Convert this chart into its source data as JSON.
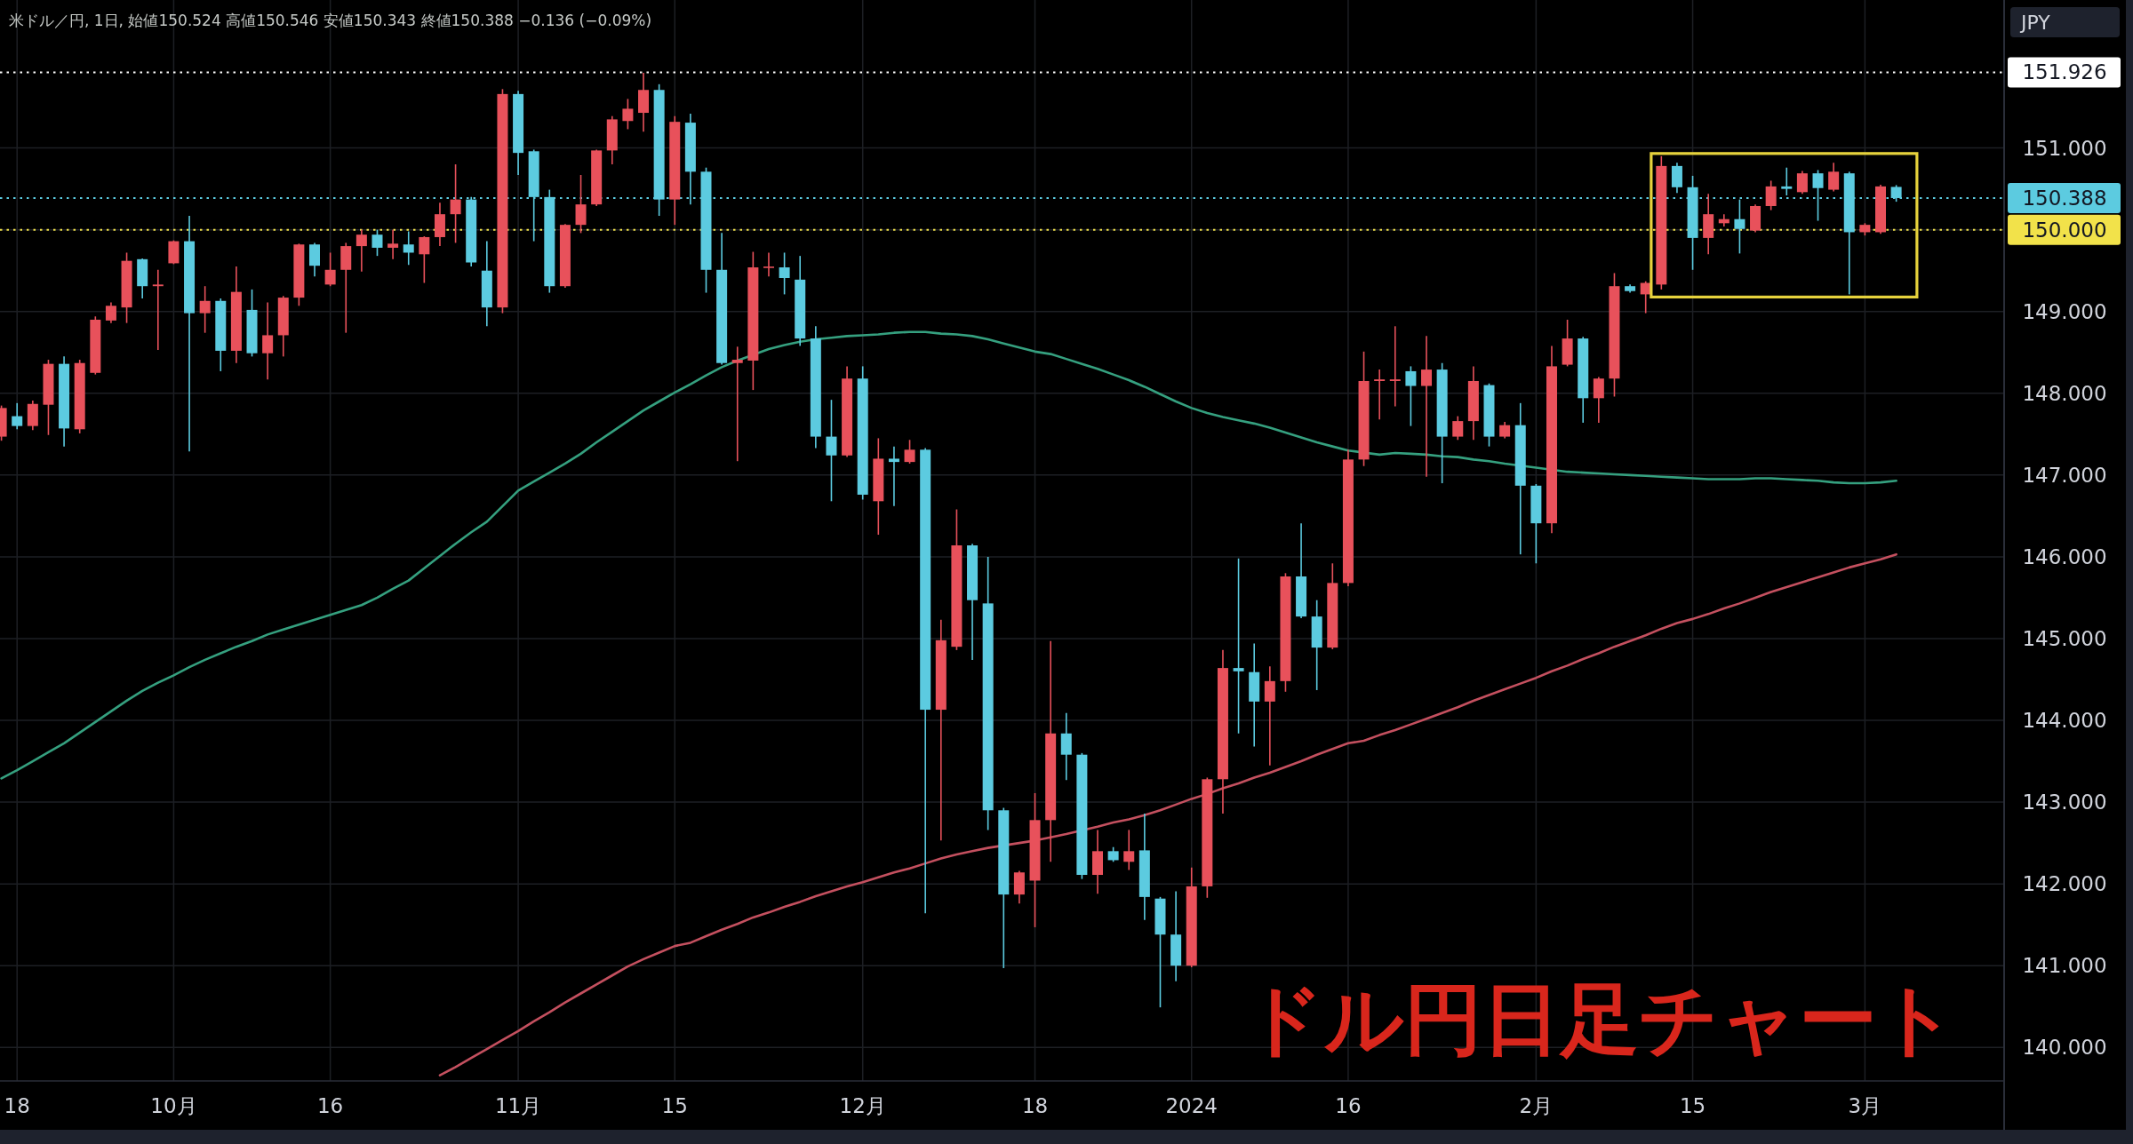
{
  "chart_data": {
    "type": "candlestick",
    "title": "米ドル／円, 1日, 始値150.524 高値150.546 安値150.343 終値150.388 −0.136 (−0.09%)",
    "ylabel": "JPY",
    "annotations": [
      "ドル円日足チャート"
    ],
    "categories": [
      null,
      "18",
      null,
      null,
      null,
      null,
      null,
      null,
      null,
      null,
      null,
      "10月",
      null,
      null,
      null,
      null,
      null,
      null,
      null,
      null,
      null,
      "16",
      null,
      null,
      null,
      null,
      null,
      null,
      null,
      null,
      null,
      null,
      null,
      "11月",
      null,
      null,
      null,
      null,
      null,
      null,
      null,
      null,
      null,
      "15",
      null,
      null,
      null,
      null,
      null,
      null,
      null,
      null,
      null,
      null,
      null,
      "12月",
      null,
      null,
      null,
      null,
      null,
      null,
      null,
      null,
      null,
      null,
      "18",
      null,
      null,
      null,
      null,
      null,
      null,
      null,
      null,
      null,
      "2024",
      null,
      null,
      null,
      null,
      null,
      null,
      null,
      null,
      null,
      "16",
      null,
      null,
      null,
      null,
      null,
      null,
      null,
      null,
      null,
      null,
      null,
      "2月",
      null,
      null,
      null,
      null,
      null,
      null,
      null,
      null,
      null,
      "15",
      null,
      null,
      null,
      null,
      null,
      null,
      null,
      null,
      null,
      null,
      "3月",
      null,
      null
    ],
    "ohlc": [
      [
        147.47,
        147.85,
        147.42,
        147.82
      ],
      [
        147.72,
        147.88,
        147.56,
        147.6
      ],
      [
        147.6,
        147.91,
        147.55,
        147.87
      ],
      [
        147.86,
        148.41,
        147.49,
        148.36
      ],
      [
        148.36,
        148.45,
        147.35,
        147.57
      ],
      [
        147.56,
        148.41,
        147.51,
        148.37
      ],
      [
        148.25,
        148.94,
        148.23,
        148.9
      ],
      [
        148.89,
        149.11,
        148.86,
        149.07
      ],
      [
        149.05,
        149.72,
        148.86,
        149.62
      ],
      [
        149.64,
        149.65,
        149.16,
        149.31
      ],
      [
        149.31,
        149.51,
        148.53,
        149.33
      ],
      [
        149.59,
        149.87,
        149.58,
        149.86
      ],
      [
        149.86,
        150.17,
        147.29,
        148.98
      ],
      [
        148.98,
        149.31,
        148.74,
        149.13
      ],
      [
        149.13,
        149.16,
        148.27,
        148.52
      ],
      [
        148.52,
        149.55,
        148.37,
        149.24
      ],
      [
        149.02,
        149.27,
        148.45,
        148.49
      ],
      [
        148.49,
        149.11,
        148.17,
        148.71
      ],
      [
        148.71,
        149.19,
        148.45,
        149.17
      ],
      [
        149.17,
        149.83,
        149.07,
        149.82
      ],
      [
        149.82,
        149.84,
        149.43,
        149.56
      ],
      [
        149.33,
        149.72,
        149.31,
        149.51
      ],
      [
        149.51,
        149.84,
        148.74,
        149.8
      ],
      [
        149.8,
        150.0,
        149.49,
        149.94
      ],
      [
        149.94,
        150.0,
        149.68,
        149.78
      ],
      [
        149.78,
        150.0,
        149.64,
        149.83
      ],
      [
        149.82,
        149.98,
        149.57,
        149.72
      ],
      [
        149.7,
        149.92,
        149.35,
        149.91
      ],
      [
        149.91,
        150.33,
        149.8,
        150.19
      ],
      [
        150.19,
        150.8,
        149.84,
        150.37
      ],
      [
        150.37,
        150.4,
        149.55,
        149.6
      ],
      [
        149.5,
        149.86,
        148.82,
        149.05
      ],
      [
        149.05,
        151.72,
        148.98,
        151.66
      ],
      [
        151.66,
        151.7,
        150.67,
        150.94
      ],
      [
        150.96,
        150.98,
        149.86,
        150.4
      ],
      [
        150.4,
        150.49,
        149.23,
        149.31
      ],
      [
        149.31,
        150.07,
        149.29,
        150.06
      ],
      [
        150.06,
        150.67,
        149.96,
        150.31
      ],
      [
        150.31,
        150.98,
        150.29,
        150.97
      ],
      [
        150.97,
        151.39,
        150.8,
        151.35
      ],
      [
        151.33,
        151.6,
        151.23,
        151.48
      ],
      [
        151.43,
        151.92,
        151.2,
        151.71
      ],
      [
        151.71,
        151.78,
        150.17,
        150.37
      ],
      [
        150.37,
        151.39,
        150.06,
        151.32
      ],
      [
        151.31,
        151.42,
        150.31,
        150.71
      ],
      [
        150.71,
        150.76,
        149.23,
        149.51
      ],
      [
        149.51,
        149.96,
        148.35,
        148.37
      ],
      [
        148.37,
        148.57,
        147.17,
        148.41
      ],
      [
        148.4,
        149.73,
        148.04,
        149.54
      ],
      [
        149.54,
        149.72,
        149.43,
        149.55
      ],
      [
        149.54,
        149.72,
        149.21,
        149.41
      ],
      [
        149.39,
        149.68,
        148.58,
        148.67
      ],
      [
        148.67,
        148.82,
        147.33,
        147.47
      ],
      [
        147.47,
        147.92,
        146.68,
        147.24
      ],
      [
        147.24,
        148.33,
        147.22,
        148.18
      ],
      [
        148.18,
        148.33,
        146.7,
        146.76
      ],
      [
        146.68,
        147.45,
        146.27,
        147.2
      ],
      [
        147.2,
        147.35,
        146.62,
        147.16
      ],
      [
        147.16,
        147.43,
        147.14,
        147.31
      ],
      [
        147.31,
        147.33,
        141.64,
        144.13
      ],
      [
        144.13,
        145.23,
        142.53,
        144.98
      ],
      [
        144.9,
        146.58,
        144.86,
        146.14
      ],
      [
        146.14,
        146.16,
        144.74,
        145.47
      ],
      [
        145.43,
        146.0,
        142.66,
        142.9
      ],
      [
        142.9,
        142.93,
        140.97,
        141.87
      ],
      [
        141.87,
        142.16,
        141.76,
        142.14
      ],
      [
        142.04,
        143.11,
        141.47,
        142.78
      ],
      [
        142.78,
        144.97,
        142.27,
        143.84
      ],
      [
        143.84,
        144.09,
        143.27,
        143.58
      ],
      [
        143.58,
        143.6,
        142.06,
        142.11
      ],
      [
        142.11,
        142.66,
        141.88,
        142.4
      ],
      [
        142.4,
        142.45,
        142.27,
        142.29
      ],
      [
        142.27,
        142.66,
        142.17,
        142.4
      ],
      [
        142.41,
        142.86,
        141.56,
        141.84
      ],
      [
        141.82,
        141.84,
        140.49,
        141.38
      ],
      [
        141.38,
        141.91,
        140.81,
        141.0
      ],
      [
        141.0,
        142.2,
        140.98,
        141.97
      ],
      [
        141.97,
        143.3,
        141.83,
        143.28
      ],
      [
        143.28,
        144.86,
        142.86,
        144.64
      ],
      [
        144.64,
        145.98,
        143.84,
        144.6
      ],
      [
        144.59,
        144.94,
        143.68,
        144.23
      ],
      [
        144.23,
        144.66,
        143.45,
        144.48
      ],
      [
        144.48,
        145.8,
        144.35,
        145.76
      ],
      [
        145.76,
        146.41,
        145.25,
        145.27
      ],
      [
        145.27,
        145.47,
        144.37,
        144.89
      ],
      [
        144.89,
        145.92,
        144.87,
        145.68
      ],
      [
        145.68,
        147.31,
        145.64,
        147.19
      ],
      [
        147.19,
        148.51,
        147.11,
        148.15
      ],
      [
        148.15,
        148.29,
        147.68,
        148.17
      ],
      [
        148.15,
        148.82,
        147.84,
        148.17
      ],
      [
        148.27,
        148.33,
        147.6,
        148.09
      ],
      [
        148.09,
        148.7,
        146.98,
        148.29
      ],
      [
        148.29,
        148.37,
        146.9,
        147.47
      ],
      [
        147.47,
        147.72,
        147.43,
        147.66
      ],
      [
        147.66,
        148.33,
        147.43,
        148.15
      ],
      [
        148.1,
        148.12,
        147.35,
        147.47
      ],
      [
        147.47,
        147.65,
        147.45,
        147.61
      ],
      [
        147.61,
        147.88,
        146.03,
        146.87
      ],
      [
        146.87,
        146.89,
        145.92,
        146.41
      ],
      [
        146.41,
        148.58,
        146.29,
        148.33
      ],
      [
        148.35,
        148.9,
        148.33,
        148.67
      ],
      [
        148.67,
        148.69,
        147.64,
        147.94
      ],
      [
        147.94,
        148.2,
        147.64,
        148.18
      ],
      [
        148.18,
        149.47,
        147.96,
        149.31
      ],
      [
        149.31,
        149.33,
        149.23,
        149.25
      ],
      [
        149.21,
        149.37,
        148.98,
        149.35
      ],
      [
        149.33,
        150.9,
        149.27,
        150.78
      ],
      [
        150.78,
        150.82,
        150.45,
        150.52
      ],
      [
        150.52,
        150.66,
        149.51,
        149.9
      ],
      [
        149.9,
        150.44,
        149.7,
        150.19
      ],
      [
        150.08,
        150.19,
        150.04,
        150.13
      ],
      [
        150.13,
        150.37,
        149.71,
        150.01
      ],
      [
        149.99,
        150.31,
        149.97,
        150.29
      ],
      [
        150.29,
        150.6,
        150.24,
        150.53
      ],
      [
        150.53,
        150.76,
        150.42,
        150.5
      ],
      [
        150.46,
        150.72,
        150.44,
        150.69
      ],
      [
        150.69,
        150.73,
        150.11,
        150.51
      ],
      [
        150.49,
        150.82,
        150.47,
        150.71
      ],
      [
        150.69,
        150.71,
        149.21,
        149.97
      ],
      [
        149.97,
        150.08,
        149.93,
        150.06
      ],
      [
        149.97,
        150.55,
        149.95,
        150.53
      ],
      [
        150.524,
        150.546,
        150.343,
        150.388
      ]
    ],
    "colors": [
      "#e8515b",
      "#5ccbe0",
      "#e8515b",
      "#e8515b",
      "#5ccbe0",
      "#e8515b",
      "#e8515b",
      "#e8515b",
      "#e8515b",
      "#5ccbe0",
      "#e8515b",
      "#e8515b",
      "#5ccbe0",
      "#e8515b",
      "#5ccbe0",
      "#e8515b",
      "#5ccbe0",
      "#e8515b",
      "#e8515b",
      "#e8515b",
      "#5ccbe0",
      "#e8515b",
      "#e8515b",
      "#e8515b",
      "#5ccbe0",
      "#e8515b",
      "#5ccbe0",
      "#e8515b",
      "#e8515b",
      "#e8515b",
      "#5ccbe0",
      "#5ccbe0",
      "#e8515b",
      "#5ccbe0",
      "#5ccbe0",
      "#5ccbe0",
      "#e8515b",
      "#e8515b",
      "#e8515b",
      "#e8515b",
      "#e8515b",
      "#e8515b",
      "#5ccbe0",
      "#e8515b",
      "#5ccbe0",
      "#5ccbe0",
      "#5ccbe0",
      "#e8515b",
      "#e8515b",
      "#e8515b",
      "#5ccbe0",
      "#5ccbe0",
      "#5ccbe0",
      "#5ccbe0",
      "#e8515b",
      "#5ccbe0",
      "#e8515b",
      "#5ccbe0",
      "#e8515b",
      "#5ccbe0",
      "#e8515b",
      "#e8515b",
      "#5ccbe0",
      "#5ccbe0",
      "#5ccbe0",
      "#e8515b",
      "#e8515b",
      "#e8515b",
      "#5ccbe0",
      "#5ccbe0",
      "#e8515b",
      "#5ccbe0",
      "#e8515b",
      "#5ccbe0",
      "#5ccbe0",
      "#5ccbe0",
      "#e8515b",
      "#e8515b",
      "#e8515b",
      "#5ccbe0",
      "#5ccbe0",
      "#e8515b",
      "#e8515b",
      "#5ccbe0",
      "#5ccbe0",
      "#e8515b",
      "#e8515b",
      "#e8515b",
      "#e8515b",
      "#e8515b",
      "#5ccbe0",
      "#e8515b",
      "#5ccbe0",
      "#e8515b",
      "#e8515b",
      "#5ccbe0",
      "#e8515b",
      "#5ccbe0",
      "#5ccbe0",
      "#e8515b",
      "#e8515b",
      "#5ccbe0",
      "#e8515b",
      "#e8515b",
      "#5ccbe0",
      "#e8515b",
      "#e8515b",
      "#5ccbe0",
      "#5ccbe0",
      "#e8515b",
      "#e8515b",
      "#5ccbe0",
      "#e8515b",
      "#e8515b",
      "#5ccbe0",
      "#e8515b",
      "#5ccbe0",
      "#e8515b",
      "#5ccbe0",
      "#e8515b",
      "#e8515b",
      "#5ccbe0"
    ],
    "series": [
      {
        "type": "line",
        "color": "#35a07f",
        "values": [
          143.29,
          143.39,
          143.5,
          143.61,
          143.72,
          143.85,
          143.98,
          144.11,
          144.24,
          144.36,
          144.46,
          144.55,
          144.65,
          144.74,
          144.82,
          144.9,
          144.97,
          145.05,
          145.11,
          145.17,
          145.23,
          145.29,
          145.35,
          145.41,
          145.5,
          145.61,
          145.71,
          145.86,
          146.01,
          146.16,
          146.3,
          146.43,
          146.62,
          146.81,
          146.92,
          147.03,
          147.14,
          147.26,
          147.4,
          147.53,
          147.66,
          147.79,
          147.9,
          148.01,
          148.11,
          148.22,
          148.32,
          148.4,
          null,
          148.54,
          148.59,
          148.63,
          148.66,
          148.68,
          148.7,
          148.71,
          148.72,
          148.74,
          148.75,
          148.75,
          148.73,
          148.72,
          148.7,
          148.66,
          148.61,
          148.56,
          148.51,
          148.48,
          148.42,
          148.36,
          148.3,
          148.23,
          148.16,
          148.08,
          147.99,
          147.9,
          147.82,
          147.76,
          147.71,
          147.67,
          147.63,
          147.58,
          147.52,
          147.46,
          147.4,
          147.35,
          147.3,
          null,
          147.25,
          147.27,
          147.26,
          147.25,
          147.23,
          147.22,
          147.19,
          147.17,
          147.14,
          null,
          147.09,
          null,
          147.04,
          147.03,
          147.02,
          147.01,
          147.0,
          146.99,
          146.98,
          146.97,
          146.96,
          146.95,
          146.95,
          146.95,
          146.96,
          146.96,
          146.95,
          146.94,
          146.93,
          146.91,
          146.9,
          146.9,
          146.91,
          146.93
        ]
      },
      {
        "type": "line",
        "color": "#c4505f",
        "values": [
          null,
          null,
          null,
          null,
          null,
          null,
          null,
          null,
          null,
          null,
          null,
          null,
          null,
          null,
          null,
          null,
          null,
          null,
          null,
          null,
          null,
          null,
          null,
          null,
          null,
          null,
          null,
          null,
          139.66,
          139.76,
          139.87,
          139.98,
          140.09,
          140.2,
          140.32,
          140.43,
          140.55,
          140.66,
          140.77,
          140.88,
          140.99,
          141.08,
          141.16,
          141.24,
          141.28,
          141.36,
          141.44,
          141.51,
          141.59,
          141.65,
          141.72,
          141.78,
          141.85,
          141.91,
          141.97,
          142.02,
          142.08,
          142.14,
          142.19,
          142.25,
          142.31,
          142.36,
          142.4,
          142.44,
          null,
          142.5,
          142.53,
          142.57,
          142.61,
          null,
          142.7,
          142.75,
          142.79,
          142.84,
          142.9,
          142.97,
          143.04,
          143.1,
          143.17,
          143.23,
          143.3,
          143.36,
          143.43,
          143.5,
          143.58,
          143.65,
          143.72,
          143.75,
          143.82,
          143.88,
          143.95,
          144.02,
          144.09,
          144.16,
          144.24,
          144.31,
          144.38,
          144.45,
          144.52,
          144.6,
          144.67,
          144.75,
          144.82,
          144.9,
          144.97,
          145.04,
          145.12,
          145.19,
          145.24,
          145.3,
          145.37,
          145.43,
          145.5,
          145.57,
          145.63,
          145.69,
          145.75,
          145.81,
          145.87,
          145.92,
          145.97,
          146.03
        ]
      }
    ],
    "ylim": [
      139.59,
      152.81
    ],
    "yticks": [
      {
        "value": 140,
        "label": "140.000"
      },
      {
        "value": 141,
        "label": "141.000"
      },
      {
        "value": 142,
        "label": "142.000"
      },
      {
        "value": 143,
        "label": "143.000"
      },
      {
        "value": 144,
        "label": "144.000"
      },
      {
        "value": 145,
        "label": "145.000"
      },
      {
        "value": 146,
        "label": "146.000"
      },
      {
        "value": 147,
        "label": "147.000"
      },
      {
        "value": 148,
        "label": "148.000"
      },
      {
        "value": 149,
        "label": "149.000"
      },
      {
        "value": 150,
        "label": null
      },
      {
        "value": 151,
        "label": "151.000"
      }
    ],
    "ref_lines": [
      {
        "axis": "y",
        "value": 151.926,
        "label": "151.926",
        "color": "#ffffff",
        "line_style": "dotted"
      },
      {
        "axis": "y",
        "value": 150.388,
        "label": "150.388",
        "color": "#5ccbe0",
        "line_style": "dotted"
      },
      {
        "axis": "y",
        "value": 150,
        "label": "150.000",
        "color": "#f2e24a",
        "line_style": "dotted"
      }
    ],
    "grid": true
  }
}
